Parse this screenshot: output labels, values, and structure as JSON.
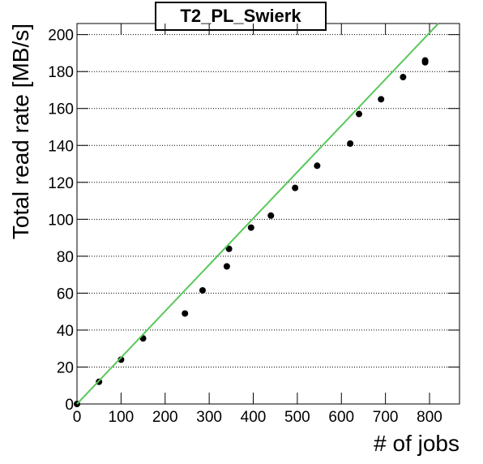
{
  "chart_data": {
    "type": "scatter",
    "title": "T2_PL_Swierk",
    "x_label": "# of jobs",
    "y_label": "Total read rate [MB/s]",
    "xlim": [
      0,
      868
    ],
    "ylim": [
      0,
      206
    ],
    "xticks": [
      0,
      100,
      200,
      300,
      400,
      500,
      600,
      700,
      800
    ],
    "yticks": [
      0,
      20,
      40,
      60,
      80,
      100,
      120,
      140,
      160,
      180,
      200
    ],
    "grid": true,
    "series": [
      {
        "style": "markers",
        "color": "#000000",
        "x": [
          0,
          50,
          100,
          150,
          245,
          285,
          340,
          345,
          395,
          440,
          495,
          545,
          620,
          640,
          690,
          740,
          790,
          790
        ],
        "values": [
          0,
          12,
          24,
          35.5,
          49,
          61.5,
          74.5,
          84,
          95.5,
          102,
          117,
          129,
          141,
          157,
          165,
          177,
          185,
          186
        ]
      },
      {
        "style": "line",
        "color": "#5ac85a",
        "x": [
          0,
          820
        ],
        "values": [
          0,
          206
        ]
      }
    ]
  }
}
